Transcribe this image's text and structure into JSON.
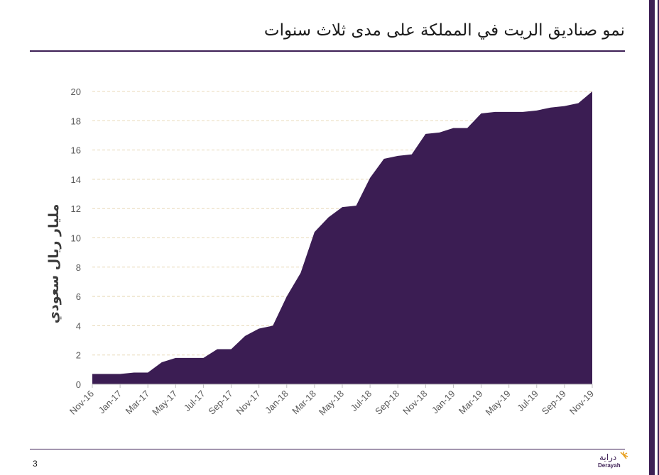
{
  "slide": {
    "title": "نمو صناديق الريت في المملكة على مدى ثلاث سنوات",
    "page_number": "3",
    "logo_text": "Derayah",
    "logo_arabic": "دراية"
  },
  "colors": {
    "accent": "#3d1f55",
    "area_fill": "#3b1d53",
    "grid": "#e8d9b8",
    "tick_text": "#595959"
  },
  "chart_data": {
    "type": "area",
    "title": "",
    "xlabel": "",
    "ylabel": "مليار ريال سعودي",
    "ylim": [
      0,
      20
    ],
    "yticks": [
      0,
      2,
      4,
      6,
      8,
      10,
      12,
      14,
      16,
      18,
      20
    ],
    "grid": true,
    "x": [
      "Nov-16",
      "Dec-16",
      "Jan-17",
      "Feb-17",
      "Mar-17",
      "Apr-17",
      "May-17",
      "Jun-17",
      "Jul-17",
      "Aug-17",
      "Sep-17",
      "Oct-17",
      "Nov-17",
      "Dec-17",
      "Jan-18",
      "Feb-18",
      "Mar-18",
      "Apr-18",
      "May-18",
      "Jun-18",
      "Jul-18",
      "Aug-18",
      "Sep-18",
      "Oct-18",
      "Nov-18",
      "Dec-18",
      "Jan-19",
      "Feb-19",
      "Mar-19",
      "Apr-19",
      "May-19",
      "Jun-19",
      "Jul-19",
      "Aug-19",
      "Sep-19",
      "Oct-19",
      "Nov-19"
    ],
    "xtick_labels": [
      "Nov-16",
      "Jan-17",
      "Mar-17",
      "May-17",
      "Jul-17",
      "Sep-17",
      "Nov-17",
      "Jan-18",
      "Mar-18",
      "May-18",
      "Jul-18",
      "Sep-18",
      "Nov-18",
      "Jan-19",
      "Mar-19",
      "May-19",
      "Jul-19",
      "Sep-19",
      "Nov-19"
    ],
    "series": [
      {
        "name": "REIT funds",
        "values": [
          0.7,
          0.7,
          0.7,
          0.8,
          0.8,
          1.5,
          1.8,
          1.8,
          1.8,
          2.4,
          2.4,
          3.3,
          3.8,
          4.0,
          6.0,
          7.6,
          10.4,
          11.4,
          12.1,
          12.2,
          14.1,
          15.4,
          15.6,
          15.7,
          17.1,
          17.2,
          17.5,
          17.5,
          18.5,
          18.6,
          18.6,
          18.6,
          18.7,
          18.9,
          19.0,
          19.2,
          20.0
        ]
      }
    ]
  }
}
